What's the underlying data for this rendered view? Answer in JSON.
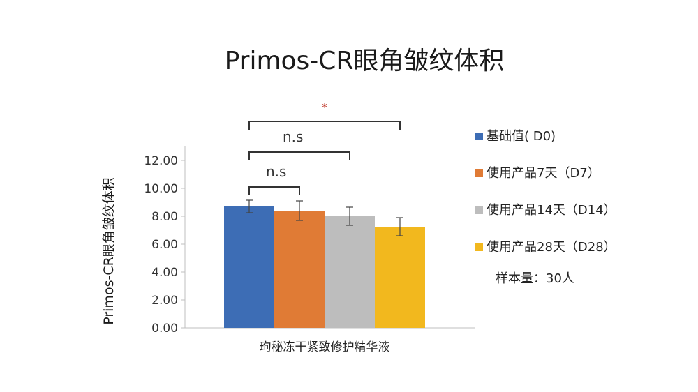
{
  "chart_data": {
    "type": "bar",
    "title": "Primos-CR眼角皱纹体积",
    "ylabel": "Primos-CR眼角皱纹体积",
    "categories": [
      "珣秘冻干紧致修护精华液"
    ],
    "ylim": [
      0,
      12
    ],
    "ytick_labels": [
      "0.00",
      "2.00",
      "4.00",
      "6.00",
      "8.00",
      "10.00",
      "12.00"
    ],
    "yticks": [
      0,
      2,
      4,
      6,
      8,
      10,
      12
    ],
    "grid": false,
    "legend_position": "right",
    "series": [
      {
        "name": "基础值( D0)",
        "values": [
          8.7
        ],
        "error": [
          0.45
        ],
        "color": "#3d6db5"
      },
      {
        "name": "使用产品7天（D7）",
        "values": [
          8.4
        ],
        "error": [
          0.7
        ],
        "color": "#e07b35"
      },
      {
        "name": "使用产品14天（D14）",
        "values": [
          8.0
        ],
        "error": [
          0.65
        ],
        "color": "#bdbdbd"
      },
      {
        "name": "使用产品28天（D28）",
        "values": [
          7.25
        ],
        "error": [
          0.65
        ],
        "color": "#f2b81e"
      }
    ],
    "annotations": [
      {
        "from_series": 0,
        "to_series": 1,
        "label": "n.s",
        "y": 10.1
      },
      {
        "from_series": 0,
        "to_series": 2,
        "label": "n.s",
        "y": 12.6
      },
      {
        "from_series": 0,
        "to_series": 3,
        "label": "*",
        "y": 14.8
      }
    ],
    "note": "样本量：30人"
  }
}
